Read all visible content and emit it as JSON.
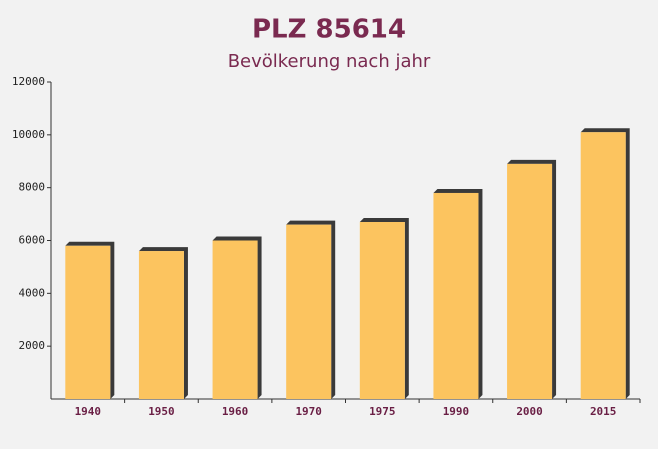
{
  "chart_data": {
    "type": "bar",
    "title": "PLZ 85614",
    "subtitle": "Bevölkerung nach jahr",
    "categories": [
      "1940",
      "1950",
      "1960",
      "1970",
      "1975",
      "1990",
      "2000",
      "2015"
    ],
    "values": [
      5800,
      5600,
      6000,
      6600,
      6700,
      7800,
      8900,
      10100
    ],
    "color": "#fcc45f",
    "ylim": [
      0,
      12000
    ],
    "yticks": [
      2000,
      4000,
      6000,
      8000,
      10000,
      12000
    ],
    "grid": false
  }
}
